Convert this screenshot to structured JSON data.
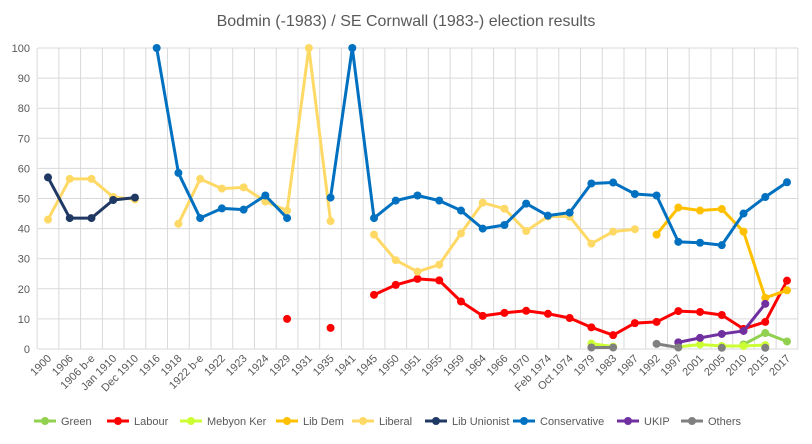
{
  "chart_data": {
    "type": "line",
    "title": "Bodmin (-1983) / SE Cornwall (1983-) election results",
    "ylim": [
      0,
      100
    ],
    "yticks": [
      0,
      10,
      20,
      30,
      40,
      50,
      60,
      70,
      80,
      90,
      100
    ],
    "grid": true,
    "legend_placement": "bottom",
    "categories": [
      "1900",
      "1906",
      "1906 b-e",
      "Jan 1910",
      "Dec 1910",
      "1916",
      "1918",
      "1922 b-e",
      "1922",
      "1923",
      "1924",
      "1929",
      "1931",
      "1935",
      "1941",
      "1945",
      "1950",
      "1951",
      "1955",
      "1959",
      "1964",
      "1966",
      "1970",
      "Feb 1974",
      "Oct 1974",
      "1979",
      "1983",
      "1987",
      "1992",
      "1997",
      "2001",
      "2005",
      "2010",
      "2015",
      "2017"
    ],
    "series": [
      {
        "name": "Green",
        "color": "#92d050",
        "values": [
          null,
          null,
          null,
          null,
          null,
          null,
          null,
          null,
          null,
          null,
          null,
          null,
          null,
          null,
          null,
          null,
          null,
          null,
          null,
          null,
          null,
          null,
          null,
          null,
          null,
          null,
          null,
          null,
          null,
          null,
          null,
          null,
          1.5,
          5.3,
          2.5
        ]
      },
      {
        "name": "Labour",
        "color": "#ff0000",
        "values": [
          null,
          null,
          null,
          null,
          null,
          null,
          null,
          null,
          null,
          null,
          null,
          10,
          null,
          7,
          null,
          18,
          21.3,
          23.3,
          22.8,
          15.8,
          11,
          12,
          12.7,
          11.7,
          10.3,
          7.2,
          4.6,
          8.6,
          9,
          12.6,
          12.3,
          11.3,
          6.7,
          9,
          22.7
        ]
      },
      {
        "name": "Mebyon Ker",
        "color": "#ccff33",
        "values": [
          null,
          null,
          null,
          null,
          null,
          null,
          null,
          null,
          null,
          null,
          null,
          null,
          null,
          null,
          null,
          null,
          null,
          null,
          null,
          null,
          null,
          null,
          null,
          null,
          null,
          1.8,
          0.8,
          null,
          null,
          0.7,
          1.5,
          1,
          1,
          1.3,
          null
        ]
      },
      {
        "name": "Lib Dem",
        "color": "#ffc000",
        "values": [
          null,
          null,
          null,
          null,
          null,
          null,
          null,
          null,
          null,
          null,
          null,
          null,
          null,
          null,
          null,
          null,
          null,
          null,
          null,
          null,
          null,
          null,
          null,
          null,
          null,
          null,
          null,
          null,
          38,
          47,
          46,
          46.5,
          39,
          17,
          19.5
        ]
      },
      {
        "name": "Liberal",
        "color": "#ffd966",
        "values": [
          43,
          56.5,
          56.5,
          50.5,
          49.7,
          null,
          41.6,
          56.5,
          53.3,
          53.7,
          49,
          46,
          100,
          42.5,
          null,
          38,
          29.5,
          25.7,
          28,
          38.4,
          48.6,
          46.6,
          39.2,
          44,
          44,
          35,
          39,
          39.8,
          null,
          null,
          null,
          null,
          null,
          null,
          null
        ]
      },
      {
        "name": "Lib Unionist",
        "color": "#1f3864",
        "values": [
          57,
          43.5,
          43.5,
          49.5,
          50.3,
          null,
          null,
          null,
          null,
          null,
          null,
          null,
          null,
          null,
          null,
          null,
          null,
          null,
          null,
          null,
          null,
          null,
          null,
          null,
          null,
          null,
          null,
          null,
          null,
          null,
          null,
          null,
          null,
          null,
          null
        ]
      },
      {
        "name": "Conservative",
        "color": "#0070c0",
        "values": [
          null,
          null,
          null,
          null,
          null,
          100,
          58.5,
          43.5,
          46.7,
          46.3,
          51,
          43.5,
          null,
          50.3,
          100,
          43.5,
          49.3,
          51,
          49.3,
          46,
          40,
          41.2,
          48.3,
          44.3,
          45.3,
          55,
          55.3,
          51.5,
          51,
          35.6,
          35.3,
          34.5,
          45,
          50.5,
          55.4
        ]
      },
      {
        "name": "UKIP",
        "color": "#7030a0",
        "values": [
          null,
          null,
          null,
          null,
          null,
          null,
          null,
          null,
          null,
          null,
          null,
          null,
          null,
          null,
          null,
          null,
          null,
          null,
          null,
          null,
          null,
          null,
          null,
          null,
          null,
          null,
          null,
          null,
          null,
          2.2,
          3.7,
          5,
          6,
          15,
          null
        ]
      },
      {
        "name": "Others",
        "color": "#808080",
        "values": [
          null,
          null,
          null,
          null,
          null,
          null,
          null,
          null,
          null,
          null,
          null,
          null,
          null,
          null,
          null,
          null,
          null,
          null,
          null,
          null,
          null,
          null,
          null,
          null,
          null,
          0.5,
          0.5,
          null,
          1.7,
          0.5,
          null,
          0.4,
          null,
          0.4,
          null
        ]
      }
    ]
  }
}
